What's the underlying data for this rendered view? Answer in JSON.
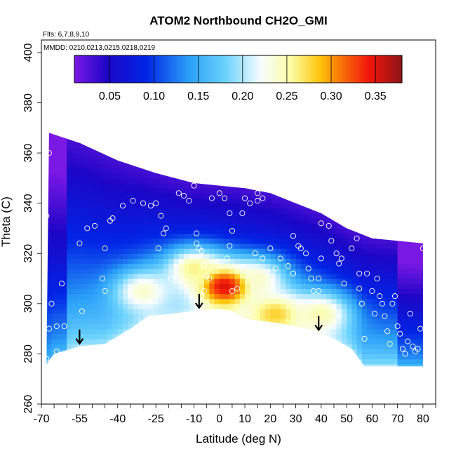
{
  "chart_data": {
    "type": "heatmap",
    "title": "ATOM2 Northbound CH2O_GMI",
    "flights_label": "Flts: 6,7,8,9,10",
    "mmdd_label": "MMDD: 0210,0213,0215,0218,0219",
    "xlabel": "Latitude (deg N)",
    "ylabel": "Theta (C)",
    "xlim": [
      -70,
      85
    ],
    "ylim": [
      260,
      405
    ],
    "x_ticks": [
      -70,
      -55,
      -40,
      -25,
      -10,
      0,
      10,
      20,
      30,
      40,
      50,
      60,
      70,
      80
    ],
    "x_tick_labels": [
      "-70",
      "-55",
      "-40",
      "-25",
      "-10",
      "0",
      "10",
      "20",
      "30",
      "40",
      "50",
      "60",
      "70",
      "80"
    ],
    "y_ticks": [
      260,
      280,
      300,
      320,
      340,
      360,
      380,
      400
    ],
    "y_tick_labels": [
      "260",
      "280",
      "300",
      "320",
      "340",
      "360",
      "380",
      "400"
    ],
    "colorbar": {
      "range": [
        0.01,
        0.38
      ],
      "ticks": [
        0.05,
        0.1,
        0.15,
        0.2,
        0.25,
        0.3,
        0.35
      ],
      "tick_labels": [
        "0.05",
        "0.10",
        "0.15",
        "0.20",
        "0.25",
        "0.30",
        "0.35"
      ]
    },
    "domain_top_theta": [
      [
        -67,
        368
      ],
      [
        -55,
        364
      ],
      [
        -40,
        357
      ],
      [
        -25,
        352
      ],
      [
        -10,
        348
      ],
      [
        0,
        347
      ],
      [
        10,
        346
      ],
      [
        20,
        344
      ],
      [
        30,
        340
      ],
      [
        40,
        336
      ],
      [
        50,
        330
      ],
      [
        60,
        326
      ],
      [
        70,
        325
      ],
      [
        80,
        324
      ]
    ],
    "domain_bottom_theta": [
      [
        -68,
        276
      ],
      [
        -65,
        280
      ],
      [
        -55,
        283
      ],
      [
        -45,
        284
      ],
      [
        -35,
        290
      ],
      [
        -28,
        295
      ],
      [
        -10,
        297
      ],
      [
        0,
        298
      ],
      [
        5,
        297
      ],
      [
        10,
        294
      ],
      [
        25,
        292
      ],
      [
        35,
        290
      ],
      [
        45,
        286
      ],
      [
        52,
        282
      ],
      [
        57,
        275
      ],
      [
        80,
        275
      ]
    ],
    "concentration_peaks": [
      {
        "lat": 2,
        "theta": 307,
        "value": 0.35
      },
      {
        "lat": 22,
        "theta": 296,
        "value": 0.28
      },
      {
        "lat": 40,
        "theta": 296,
        "value": 0.25
      },
      {
        "lat": -10,
        "theta": 314,
        "value": 0.26
      },
      {
        "lat": -30,
        "theta": 305,
        "value": 0.24
      },
      {
        "lat": 15,
        "theta": 310,
        "value": 0.24
      }
    ],
    "sample_points": [
      [
        -68,
        335
      ],
      [
        -67,
        360
      ],
      [
        -66,
        300
      ],
      [
        -67,
        290
      ],
      [
        -64,
        291
      ],
      [
        -61,
        291
      ],
      [
        -62,
        308
      ],
      [
        -64,
        281
      ],
      [
        -68,
        278
      ],
      [
        -55,
        324
      ],
      [
        -54,
        297
      ],
      [
        -52,
        330
      ],
      [
        -49,
        331
      ],
      [
        -45,
        322
      ],
      [
        -46,
        310
      ],
      [
        -45,
        305
      ],
      [
        -43,
        333
      ],
      [
        -42,
        334
      ],
      [
        -38,
        339
      ],
      [
        -34,
        341
      ],
      [
        -30,
        340
      ],
      [
        -27,
        339
      ],
      [
        -25,
        340
      ],
      [
        -23,
        335
      ],
      [
        -22,
        328
      ],
      [
        -21,
        330
      ],
      [
        -24,
        322
      ],
      [
        -19,
        310
      ],
      [
        -16,
        344
      ],
      [
        -14,
        343
      ],
      [
        -12,
        341
      ],
      [
        -10,
        347
      ],
      [
        -9,
        328
      ],
      [
        -9,
        324
      ],
      [
        -8,
        322
      ],
      [
        -7,
        321
      ],
      [
        -6,
        315
      ],
      [
        -5,
        311
      ],
      [
        -4,
        310
      ],
      [
        -6,
        305
      ],
      [
        -7,
        303
      ],
      [
        -5,
        300
      ],
      [
        -3,
        342
      ],
      [
        0,
        344
      ],
      [
        2,
        342
      ],
      [
        4,
        336
      ],
      [
        5,
        329
      ],
      [
        4,
        323
      ],
      [
        3,
        318
      ],
      [
        5,
        305
      ],
      [
        7,
        306
      ],
      [
        9,
        336
      ],
      [
        10,
        342
      ],
      [
        12,
        340
      ],
      [
        15,
        344
      ],
      [
        15,
        341
      ],
      [
        17,
        342
      ],
      [
        14,
        320
      ],
      [
        17,
        318
      ],
      [
        20,
        322
      ],
      [
        22,
        314
      ],
      [
        24,
        318
      ],
      [
        27,
        315
      ],
      [
        29,
        312
      ],
      [
        29,
        327
      ],
      [
        31,
        323
      ],
      [
        32,
        322
      ],
      [
        34,
        320
      ],
      [
        35,
        314
      ],
      [
        36,
        310
      ],
      [
        37,
        305
      ],
      [
        39,
        310
      ],
      [
        39,
        305
      ],
      [
        40,
        318
      ],
      [
        40,
        332
      ],
      [
        43,
        331
      ],
      [
        44,
        325
      ],
      [
        46,
        320
      ],
      [
        47,
        316
      ],
      [
        48,
        318
      ],
      [
        49,
        308
      ],
      [
        52,
        322
      ],
      [
        54,
        326
      ],
      [
        55,
        312
      ],
      [
        55,
        306
      ],
      [
        56,
        300
      ],
      [
        57,
        286
      ],
      [
        58,
        312
      ],
      [
        60,
        305
      ],
      [
        61,
        296
      ],
      [
        62,
        310
      ],
      [
        63,
        303
      ],
      [
        64,
        300
      ],
      [
        65,
        295
      ],
      [
        66,
        289
      ],
      [
        67,
        284
      ],
      [
        68,
        300
      ],
      [
        69,
        303
      ],
      [
        70,
        291
      ],
      [
        71,
        288
      ],
      [
        72,
        282
      ],
      [
        73,
        280
      ],
      [
        74,
        285
      ],
      [
        75,
        296
      ],
      [
        76,
        283
      ],
      [
        77,
        281
      ],
      [
        78,
        282
      ],
      [
        79,
        290
      ],
      [
        80,
        322
      ]
    ],
    "arrow_latitudes": [
      -55,
      -8,
      39
    ]
  }
}
